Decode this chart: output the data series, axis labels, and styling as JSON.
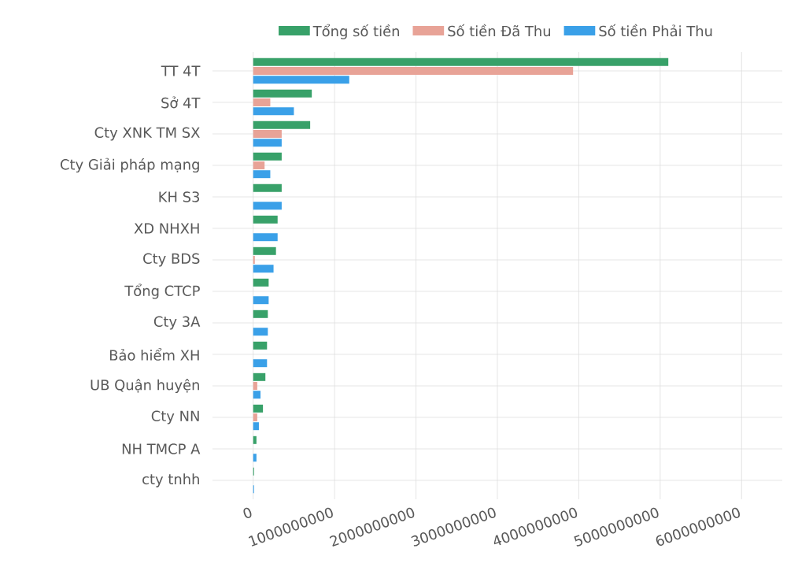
{
  "chart_data": {
    "type": "bar",
    "orientation": "horizontal",
    "categories": [
      "TT 4T",
      "Sở 4T",
      "Cty XNK TM SX",
      "Cty Giải pháp mạng",
      "KH S3",
      "XD NHXH",
      "Cty BDS",
      "Tổng CTCP",
      "Cty 3A",
      "Bảo hiểm XH",
      "UB Quận huyện",
      "Cty NN",
      "NH TMCP A",
      "cty tnhh"
    ],
    "series": [
      {
        "name": "Tổng số tiền",
        "color": "#38a169",
        "values": [
          5100000000,
          720000000,
          700000000,
          350000000,
          350000000,
          300000000,
          280000000,
          190000000,
          180000000,
          170000000,
          150000000,
          120000000,
          40000000,
          10000000
        ]
      },
      {
        "name": "Số tiền Đã Thu",
        "color": "#e8a397",
        "values": [
          3930000000,
          210000000,
          350000000,
          140000000,
          0,
          0,
          20000000,
          0,
          0,
          0,
          50000000,
          50000000,
          0,
          0
        ]
      },
      {
        "name": "Số tiền Phải Thu",
        "color": "#3aa0e8",
        "values": [
          1180000000,
          500000000,
          350000000,
          210000000,
          350000000,
          300000000,
          250000000,
          190000000,
          180000000,
          170000000,
          90000000,
          70000000,
          40000000,
          10000000
        ]
      }
    ],
    "xlim": [
      -500000000,
      6500000000
    ],
    "xticks": [
      0,
      1000000000,
      2000000000,
      3000000000,
      4000000000,
      5000000000,
      6000000000
    ],
    "grid": true,
    "legend": "top"
  }
}
